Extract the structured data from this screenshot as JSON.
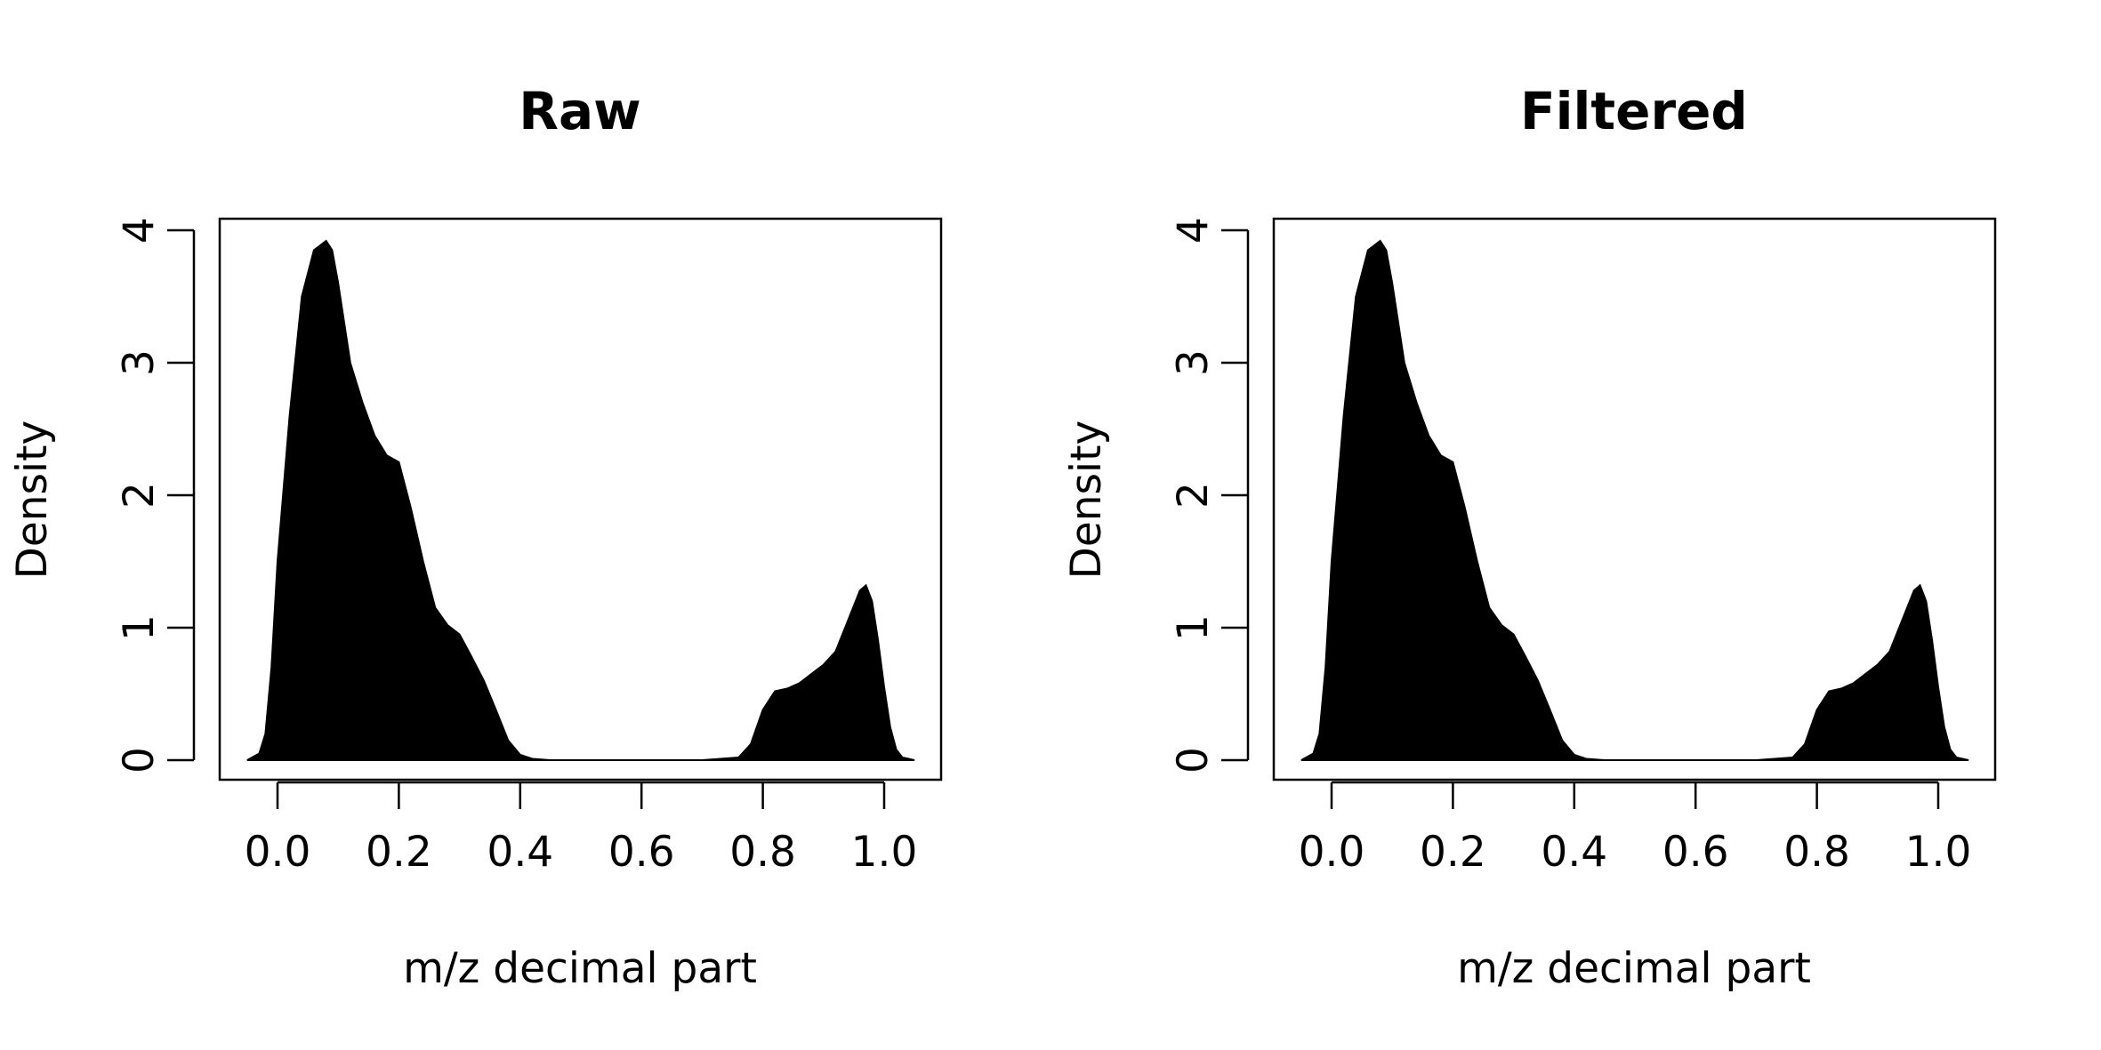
{
  "chart_data": [
    {
      "type": "area",
      "title": "Raw",
      "xlabel": "m/z decimal part",
      "ylabel": "Density",
      "xlim": [
        -0.1,
        1.1
      ],
      "ylim": [
        0,
        4.15
      ],
      "xticks": [
        0.0,
        0.2,
        0.4,
        0.6,
        0.8,
        1.0
      ],
      "xtick_labels": [
        "0.0",
        "0.2",
        "0.4",
        "0.6",
        "0.8",
        "1.0"
      ],
      "yticks": [
        0,
        1,
        2,
        3,
        4
      ],
      "ytick_labels": [
        "0",
        "1",
        "2",
        "3",
        "4"
      ],
      "grid": false,
      "fill_color": "#000000",
      "series": [
        {
          "x": [
            -0.05,
            -0.03,
            -0.02,
            -0.01,
            0.0,
            0.02,
            0.04,
            0.06,
            0.08,
            0.09,
            0.1,
            0.11,
            0.12,
            0.14,
            0.16,
            0.18,
            0.2,
            0.22,
            0.24,
            0.26,
            0.28,
            0.3,
            0.32,
            0.34,
            0.36,
            0.38,
            0.4,
            0.42,
            0.45,
            0.5,
            0.6,
            0.7,
            0.76,
            0.78,
            0.8,
            0.82,
            0.84,
            0.86,
            0.88,
            0.9,
            0.92,
            0.94,
            0.96,
            0.97,
            0.98,
            0.99,
            1.0,
            1.01,
            1.02,
            1.03,
            1.05
          ],
          "y": [
            0.0,
            0.05,
            0.2,
            0.7,
            1.5,
            2.6,
            3.5,
            3.85,
            3.92,
            3.85,
            3.6,
            3.3,
            3.0,
            2.7,
            2.45,
            2.3,
            2.25,
            1.9,
            1.5,
            1.15,
            1.02,
            0.95,
            0.78,
            0.6,
            0.38,
            0.15,
            0.04,
            0.01,
            0.0,
            0.0,
            0.0,
            0.0,
            0.02,
            0.12,
            0.38,
            0.52,
            0.54,
            0.58,
            0.65,
            0.72,
            0.82,
            1.05,
            1.28,
            1.32,
            1.2,
            0.9,
            0.55,
            0.25,
            0.08,
            0.02,
            0.0
          ]
        }
      ]
    },
    {
      "type": "area",
      "title": "Filtered",
      "xlabel": "m/z decimal part",
      "ylabel": "Density",
      "xlim": [
        -0.1,
        1.1
      ],
      "ylim": [
        0,
        4.15
      ],
      "xticks": [
        0.0,
        0.2,
        0.4,
        0.6,
        0.8,
        1.0
      ],
      "xtick_labels": [
        "0.0",
        "0.2",
        "0.4",
        "0.6",
        "0.8",
        "1.0"
      ],
      "yticks": [
        0,
        1,
        2,
        3,
        4
      ],
      "ytick_labels": [
        "0",
        "1",
        "2",
        "3",
        "4"
      ],
      "grid": false,
      "fill_color": "#000000",
      "series": [
        {
          "x": [
            -0.05,
            -0.03,
            -0.02,
            -0.01,
            0.0,
            0.02,
            0.04,
            0.06,
            0.08,
            0.09,
            0.1,
            0.11,
            0.12,
            0.14,
            0.16,
            0.18,
            0.2,
            0.22,
            0.24,
            0.26,
            0.28,
            0.3,
            0.32,
            0.34,
            0.36,
            0.38,
            0.4,
            0.42,
            0.45,
            0.5,
            0.6,
            0.7,
            0.76,
            0.78,
            0.8,
            0.82,
            0.84,
            0.86,
            0.88,
            0.9,
            0.92,
            0.94,
            0.96,
            0.97,
            0.98,
            0.99,
            1.0,
            1.01,
            1.02,
            1.03,
            1.05
          ],
          "y": [
            0.0,
            0.05,
            0.2,
            0.7,
            1.5,
            2.6,
            3.5,
            3.85,
            3.92,
            3.85,
            3.6,
            3.3,
            3.0,
            2.7,
            2.45,
            2.3,
            2.25,
            1.9,
            1.5,
            1.15,
            1.02,
            0.95,
            0.78,
            0.6,
            0.38,
            0.15,
            0.04,
            0.01,
            0.0,
            0.0,
            0.0,
            0.0,
            0.02,
            0.12,
            0.38,
            0.52,
            0.54,
            0.58,
            0.65,
            0.72,
            0.82,
            1.05,
            1.28,
            1.32,
            1.2,
            0.9,
            0.55,
            0.25,
            0.08,
            0.02,
            0.0
          ]
        }
      ]
    }
  ]
}
